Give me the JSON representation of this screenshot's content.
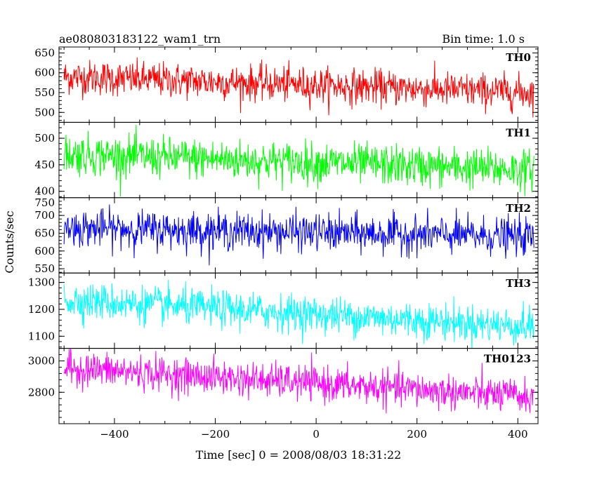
{
  "chart_data": {
    "type": "line",
    "title": "ae080803183122_wam1_trn",
    "bin_time_label": "Bin time: 1.0 s",
    "xlabel": "Time [sec] 0 = 2008/08/03 18:31:22",
    "ylabel": "Counts/sec",
    "x_range": [
      -510,
      440
    ],
    "x_data_range": [
      -500,
      432
    ],
    "x_ticks": [
      -400,
      -200,
      0,
      200,
      400
    ],
    "x_tick_labels": [
      "−400",
      "−200",
      "0",
      "200",
      "400"
    ],
    "grid": false,
    "panels": [
      {
        "name": "TH0",
        "color": "#ff0000",
        "ylim": [
          475,
          665
        ],
        "y_ticks": [
          500,
          550,
          600,
          650
        ],
        "y_tick_labels": [
          "500",
          "550",
          "600",
          "650"
        ],
        "trend_start": 590,
        "trend_end": 550,
        "noise_sd": 22
      },
      {
        "name": "TH1",
        "color": "#00ff00",
        "ylim": [
          388,
          530
        ],
        "y_ticks": [
          400,
          450,
          500
        ],
        "y_tick_labels": [
          "400",
          "450",
          "500"
        ],
        "trend_start": 470,
        "trend_end": 440,
        "noise_sd": 19
      },
      {
        "name": "TH2",
        "color": "#0000ff",
        "ylim": [
          538,
          750
        ],
        "y_ticks": [
          550,
          600,
          650,
          700,
          750
        ],
        "y_tick_labels": [
          "550",
          "600",
          "650",
          "700",
          "750"
        ],
        "trend_start": 665,
        "trend_end": 640,
        "noise_sd": 26
      },
      {
        "name": "TH3",
        "color": "#00ffff",
        "ylim": [
          1055,
          1335
        ],
        "y_ticks": [
          1100,
          1200,
          1300
        ],
        "y_tick_labels": [
          "1100",
          "1200",
          "1300"
        ],
        "trend_start": 1235,
        "trend_end": 1135,
        "noise_sd": 34
      },
      {
        "name": "TH0123",
        "color": "#ff00ff",
        "ylim": [
          2600,
          3080
        ],
        "y_ticks": [
          2800,
          3000
        ],
        "y_tick_labels": [
          "2800",
          "3000"
        ],
        "trend_start": 2955,
        "trend_end": 2770,
        "noise_sd": 55
      }
    ]
  }
}
